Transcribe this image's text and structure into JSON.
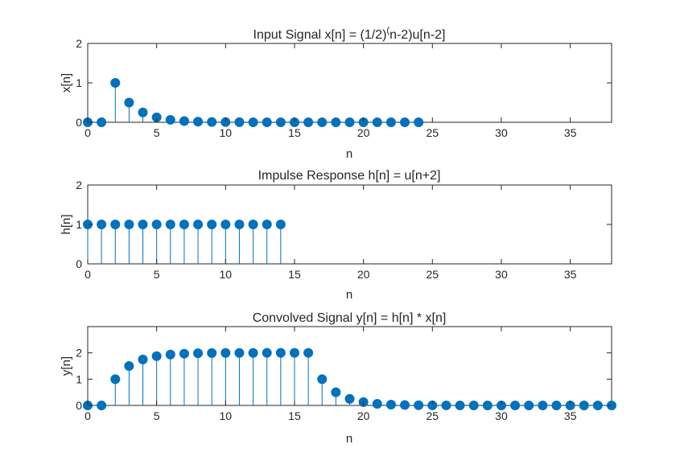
{
  "chart_data": [
    {
      "type": "stem",
      "title": "Input Signal x[n] = (1/2)^(n-2)u[n-2]",
      "title_main": "Input Signal x[n] = (1/2)",
      "title_sup": "(",
      "title_tail": "n-2)u[n-2]",
      "xlabel": "n",
      "ylabel": "x[n]",
      "xlim": [
        0,
        38
      ],
      "ylim": [
        0,
        2
      ],
      "xticks": [
        0,
        5,
        10,
        15,
        20,
        25,
        30,
        35
      ],
      "yticks": [
        0,
        1,
        2
      ],
      "grid": false,
      "color": "#0072BD",
      "x": [
        0,
        1,
        2,
        3,
        4,
        5,
        6,
        7,
        8,
        9,
        10,
        11,
        12,
        13,
        14,
        15,
        16,
        17,
        18,
        19,
        20,
        21,
        22,
        23,
        24
      ],
      "y": [
        0,
        0,
        1,
        0.5,
        0.25,
        0.125,
        0.0625,
        0.03125,
        0.015625,
        0.0078125,
        0.00390625,
        0.001953125,
        0.0009765625,
        0.00048828125,
        0.000244140625,
        0.0001220703125,
        6.103515625e-05,
        3.0517578125e-05,
        1.52587890625e-05,
        7.62939453125e-06,
        3.814697265625e-06,
        1.9073486328125e-06,
        9.5367431640625e-07,
        4.76837158203125e-07,
        2.384185791015625e-07
      ]
    },
    {
      "type": "stem",
      "title": "Impulse Response h[n] = u[n+2]",
      "xlabel": "n",
      "ylabel": "h[n]",
      "xlim": [
        0,
        38
      ],
      "ylim": [
        0,
        2
      ],
      "xticks": [
        0,
        5,
        10,
        15,
        20,
        25,
        30,
        35
      ],
      "yticks": [
        0,
        1,
        2
      ],
      "grid": false,
      "color": "#0072BD",
      "x": [
        0,
        1,
        2,
        3,
        4,
        5,
        6,
        7,
        8,
        9,
        10,
        11,
        12,
        13,
        14
      ],
      "y": [
        1,
        1,
        1,
        1,
        1,
        1,
        1,
        1,
        1,
        1,
        1,
        1,
        1,
        1,
        1
      ]
    },
    {
      "type": "stem",
      "title": "Convolved Signal y[n] = h[n] * x[n]",
      "xlabel": "n",
      "ylabel": "y[n]",
      "xlim": [
        0,
        38
      ],
      "ylim": [
        0,
        3
      ],
      "xticks": [
        0,
        5,
        10,
        15,
        20,
        25,
        30,
        35
      ],
      "yticks": [
        0,
        1,
        2
      ],
      "grid": false,
      "color": "#0072BD",
      "x": [
        0,
        1,
        2,
        3,
        4,
        5,
        6,
        7,
        8,
        9,
        10,
        11,
        12,
        13,
        14,
        15,
        16,
        17,
        18,
        19,
        20,
        21,
        22,
        23,
        24,
        25,
        26,
        27,
        28,
        29,
        30,
        31,
        32,
        33,
        34,
        35,
        36,
        37,
        38
      ],
      "y": [
        0,
        0,
        1,
        1.5,
        1.75,
        1.875,
        1.9375,
        1.96875,
        1.984375,
        1.9921875,
        1.99609375,
        1.998046875,
        1.9990234375,
        1.99951171875,
        1.999755859375,
        1.9998779296875,
        1.99993896484375,
        0.99993896484375,
        0.49993896484375,
        0.24993896484375,
        0.12493896484375,
        0.06243896484375,
        0.03118896484375,
        0.01556396484375,
        0.00775146484375,
        0.00384521484375,
        0.00189208984375,
        0.00091552734375,
        0.00042724609375,
        0.00018310546875,
        6.103515625e-05,
        0.0,
        0,
        0,
        0,
        0,
        0,
        0,
        0
      ]
    }
  ]
}
